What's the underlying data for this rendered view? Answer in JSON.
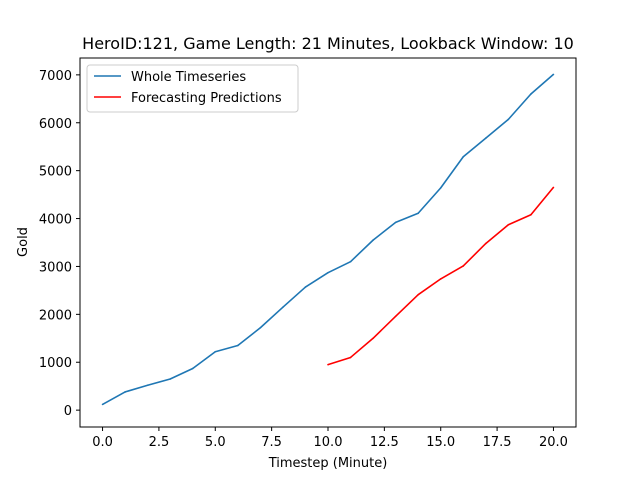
{
  "chart_data": {
    "type": "line",
    "title": "HeroID:121, Game Length: 21 Minutes, Lookback Window: 10",
    "xlabel": "Timestep (Minute)",
    "ylabel": "Gold",
    "xlim": [
      -1,
      21
    ],
    "ylim": [
      -352,
      7352
    ],
    "xticks": [
      0,
      2.5,
      5,
      7.5,
      10,
      12.5,
      15,
      17.5,
      20
    ],
    "xtick_labels": [
      "0.0",
      "2.5",
      "5.0",
      "7.5",
      "10.0",
      "12.5",
      "15.0",
      "17.5",
      "20.0"
    ],
    "yticks": [
      0,
      1000,
      2000,
      3000,
      4000,
      5000,
      6000,
      7000
    ],
    "ytick_labels": [
      "0",
      "1000",
      "2000",
      "3000",
      "4000",
      "5000",
      "6000",
      "7000"
    ],
    "grid": false,
    "legend_position": "top-left",
    "series": [
      {
        "name": "Whole Timeseries",
        "color": "#1f77b4",
        "x": [
          0,
          1,
          2,
          3,
          4,
          5,
          6,
          7,
          8,
          9,
          10,
          11,
          12,
          13,
          14,
          15,
          16,
          17,
          18,
          19,
          20
        ],
        "values": [
          120,
          380,
          520,
          650,
          870,
          1220,
          1350,
          1720,
          2150,
          2570,
          2870,
          3100,
          3550,
          3920,
          4110,
          4640,
          5290,
          5680,
          6070,
          6600,
          7010
        ]
      },
      {
        "name": "Forecasting Predictions",
        "color": "#ff0000",
        "x": [
          10,
          11,
          12,
          13,
          14,
          15,
          16,
          17,
          18,
          19,
          20
        ],
        "values": [
          950,
          1100,
          1500,
          1960,
          2410,
          2740,
          3010,
          3480,
          3870,
          4080,
          4650
        ]
      }
    ]
  }
}
